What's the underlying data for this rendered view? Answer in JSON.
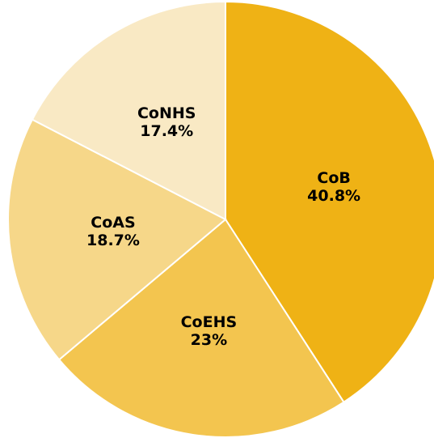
{
  "chart_data": {
    "type": "pie",
    "categories": [
      "CoB",
      "CoEHS",
      "CoAS",
      "CoNHS"
    ],
    "values": [
      40.8,
      23,
      18.7,
      17.4
    ],
    "value_labels": [
      "40.8%",
      "23%",
      "18.7%",
      "17.4%"
    ],
    "colors": [
      "#efb215",
      "#f3c54f",
      "#f6d789",
      "#f9e9c4"
    ]
  }
}
